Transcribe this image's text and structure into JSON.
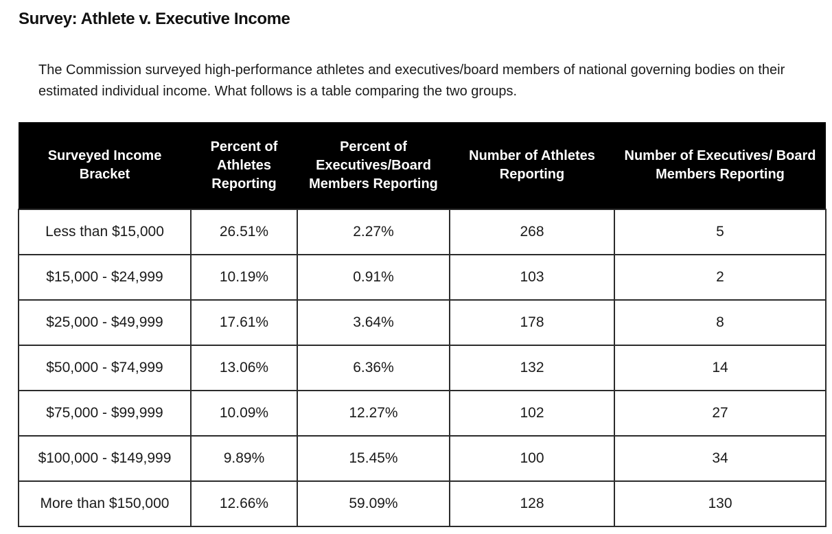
{
  "title": "Survey: Athlete v. Executive Income",
  "intro": "The Commission surveyed high-performance athletes and executives/board members of national governing bodies on their estimated individual income. What follows is a table comparing the two groups.",
  "table": {
    "headers": [
      "Surveyed Income Bracket",
      "Percent of Athletes Reporting",
      "Percent of Executives/Board Members Reporting",
      "Number of Athletes Reporting",
      "Number of Executives/ Board Members Reporting"
    ],
    "rows": [
      [
        "Less than $15,000",
        "26.51%",
        "2.27%",
        "268",
        "5"
      ],
      [
        "$15,000 - $24,999",
        "10.19%",
        "0.91%",
        "103",
        "2"
      ],
      [
        "$25,000 - $49,999",
        "17.61%",
        "3.64%",
        "178",
        "8"
      ],
      [
        "$50,000 - $74,999",
        "13.06%",
        "6.36%",
        "132",
        "14"
      ],
      [
        "$75,000 - $99,999",
        "10.09%",
        "12.27%",
        "102",
        "27"
      ],
      [
        "$100,000 - $149,999",
        "9.89%",
        "15.45%",
        "100",
        "34"
      ],
      [
        "More than $150,000",
        "12.66%",
        "59.09%",
        "128",
        "130"
      ]
    ]
  }
}
